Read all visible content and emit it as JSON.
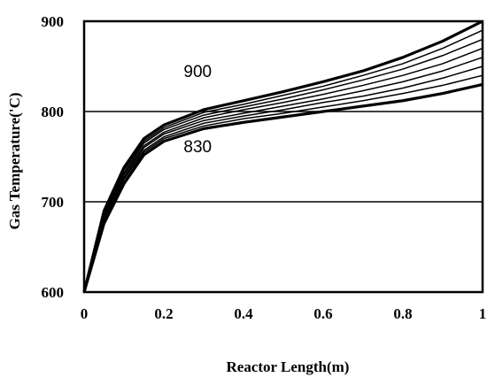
{
  "chart_data": {
    "type": "line",
    "title": "",
    "xlabel": "Reactor Length(m)",
    "ylabel": "Gas Temperature('C)",
    "xlim": [
      0,
      1
    ],
    "ylim": [
      600,
      900
    ],
    "xticks": [
      0,
      0.2,
      0.4,
      0.6,
      0.8,
      1
    ],
    "xtick_labels": [
      "0",
      "0.2",
      "0.4",
      "0.6",
      "0.8",
      "1"
    ],
    "yticks": [
      600,
      700,
      800,
      900
    ],
    "ytick_labels": [
      "600",
      "700",
      "800",
      "900"
    ],
    "grid": "horizontal",
    "legend": "none",
    "x": [
      0,
      0.05,
      0.1,
      0.15,
      0.2,
      0.3,
      0.4,
      0.5,
      0.6,
      0.7,
      0.8,
      0.9,
      1.0
    ],
    "series": [
      {
        "values": [
          600,
          676,
          720,
          752,
          767,
          781,
          788,
          794,
          800,
          806,
          812,
          820,
          830
        ]
      },
      {
        "values": [
          600,
          678,
          722,
          755,
          770,
          784,
          792,
          798,
          805,
          812,
          820,
          829,
          840
        ]
      },
      {
        "values": [
          600,
          680,
          725,
          757,
          772,
          787,
          795,
          802,
          810,
          817,
          826,
          837,
          850
        ]
      },
      {
        "values": [
          600,
          682,
          727,
          760,
          775,
          790,
          798,
          806,
          814,
          823,
          833,
          845,
          860
        ]
      },
      {
        "values": [
          600,
          684,
          730,
          762,
          777,
          793,
          802,
          810,
          819,
          829,
          840,
          853,
          870
        ]
      },
      {
        "values": [
          600,
          686,
          732,
          765,
          780,
          796,
          805,
          814,
          824,
          835,
          847,
          862,
          880
        ]
      },
      {
        "values": [
          600,
          688,
          735,
          767,
          782,
          799,
          808,
          818,
          828,
          840,
          853,
          870,
          890
        ]
      },
      {
        "values": [
          600,
          690,
          738,
          770,
          785,
          802,
          812,
          822,
          833,
          845,
          860,
          878,
          900
        ]
      }
    ],
    "annotations": [
      {
        "text": "900",
        "x": 0.285,
        "y": 838
      },
      {
        "text": "830",
        "x": 0.285,
        "y": 755
      }
    ]
  }
}
